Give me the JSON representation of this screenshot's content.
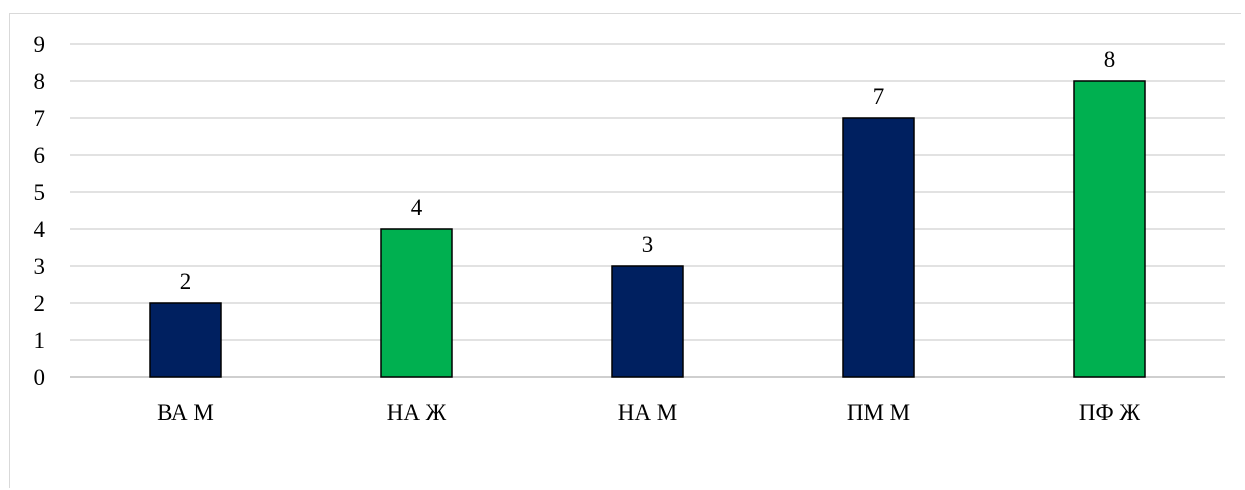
{
  "chart_data": {
    "type": "bar",
    "title": "",
    "xlabel": "",
    "ylabel": "",
    "categories": [
      "ВА М",
      "НА Ж",
      "НА М",
      "ПМ М",
      "ПФ Ж"
    ],
    "values": [
      2,
      4,
      3,
      7,
      8
    ],
    "bar_colors": [
      "#002060",
      "#00B050",
      "#002060",
      "#002060",
      "#00B050"
    ],
    "ylim": [
      0,
      9
    ],
    "yticks": [
      0,
      1,
      2,
      3,
      4,
      5,
      6,
      7,
      8,
      9
    ],
    "grid": true,
    "legend": "none",
    "data_labels": true
  },
  "colors": {
    "gridline": "#d9d9d9",
    "bar_border": "#000000"
  }
}
